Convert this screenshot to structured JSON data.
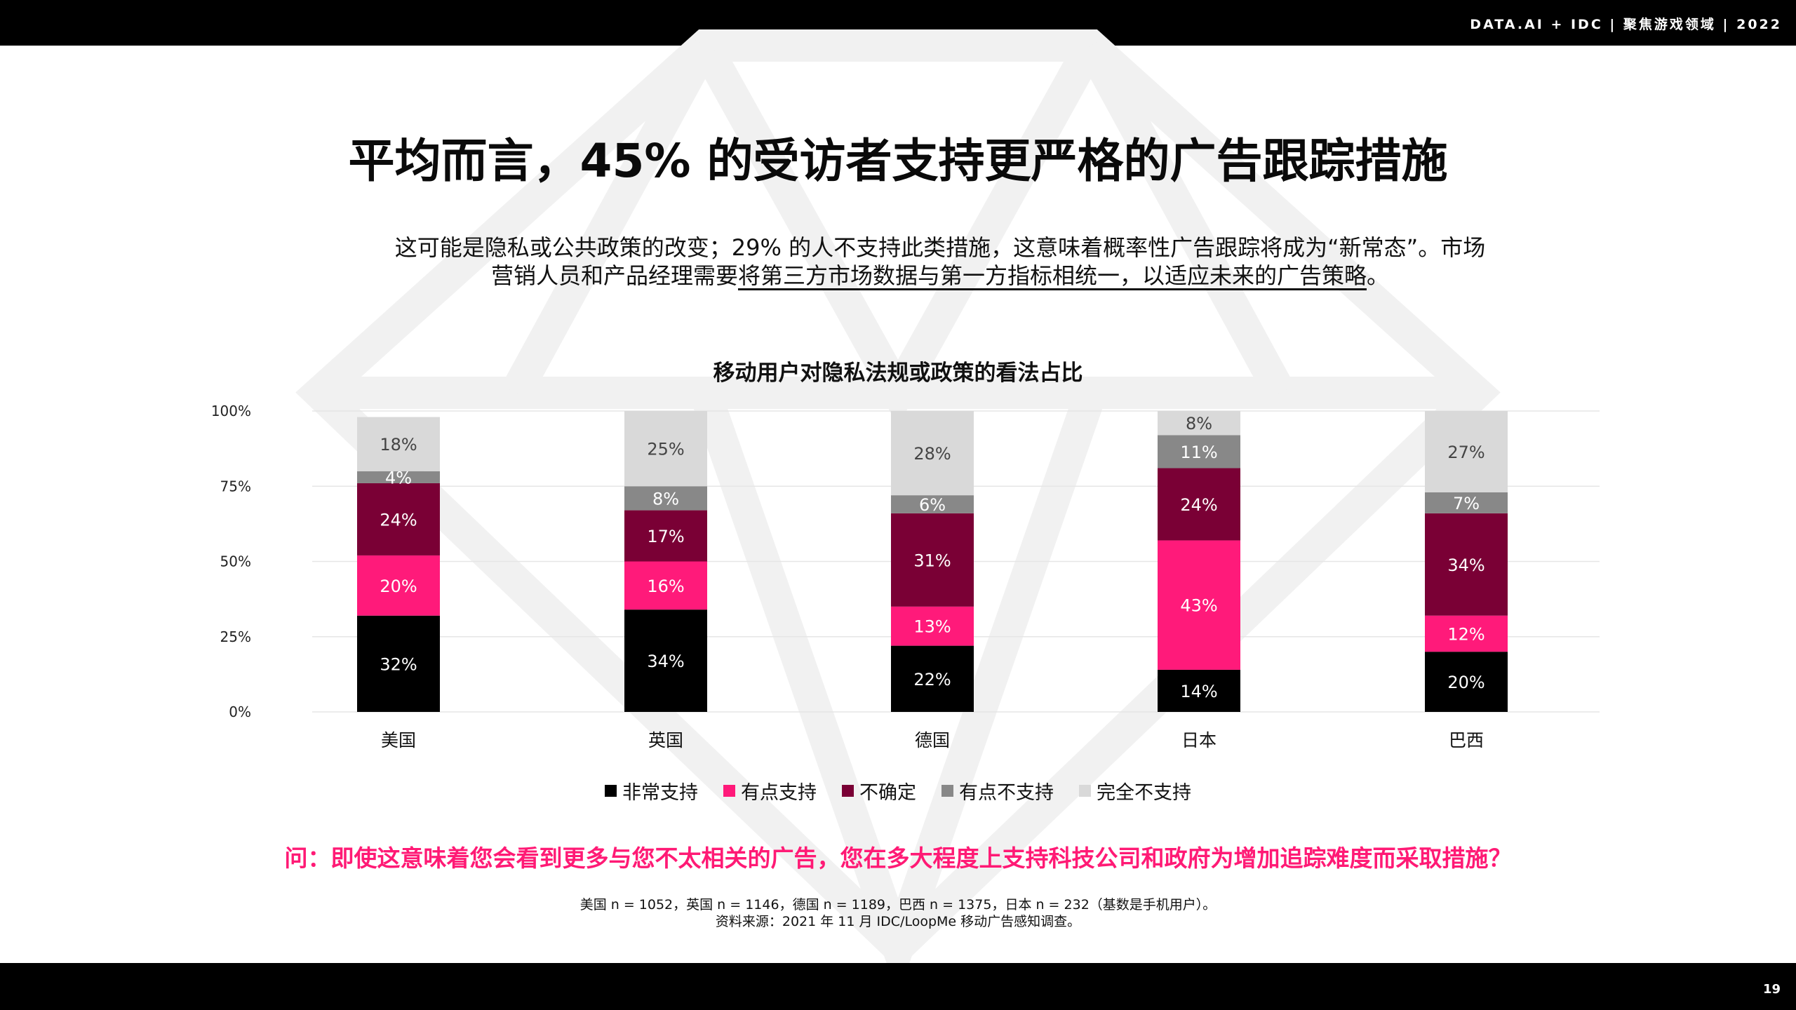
{
  "header": {
    "brand": "DATA.AI + IDC  |  聚焦游戏领域  | 2022"
  },
  "title": "平均而言，45% 的受访者支持更严格的广告跟踪措施",
  "subtitle": {
    "line1": "这可能是隐私或公共政策的改变；29% 的人不支持此类措施，这意味着概率性广告跟踪将成为“新常态”。市场",
    "line2_plain": "营销人员和产品经理需要",
    "line2_underlined": "将第三方市场数据与第一方指标相统一，以适应未来的广告策略",
    "line2_end": "。"
  },
  "chart_data": {
    "type": "bar",
    "stacked": true,
    "title": "移动用户对隐私法规或政策的看法占比",
    "categories": [
      "美国",
      "英国",
      "德国",
      "日本",
      "巴西"
    ],
    "ylim": [
      0,
      100
    ],
    "yticks": [
      "0%",
      "25%",
      "50%",
      "75%",
      "100%"
    ],
    "grid": true,
    "legend_position": "bottom",
    "series": [
      {
        "name": "非常支持",
        "color": "#000000",
        "label_color": "#ffffff",
        "values": [
          32,
          34,
          22,
          14,
          20
        ]
      },
      {
        "name": "有点支持",
        "color": "#ff1a7a",
        "label_color": "#ffffff",
        "values": [
          20,
          16,
          13,
          43,
          12
        ]
      },
      {
        "name": "不确定",
        "color": "#7a0035",
        "label_color": "#ffffff",
        "values": [
          24,
          17,
          31,
          24,
          34
        ]
      },
      {
        "name": "有点不支持",
        "color": "#888888",
        "label_color": "#ffffff",
        "values": [
          4,
          8,
          6,
          11,
          7
        ]
      },
      {
        "name": "完全不支持",
        "color": "#d9d9d9",
        "label_color": "#444444",
        "values": [
          18,
          25,
          28,
          8,
          27
        ]
      }
    ]
  },
  "question": "问：即使这意味着您会看到更多与您不太相关的广告，您在多大程度上支持科技公司和政府为增加追踪难度而采取措施？",
  "notes": {
    "sample": "美国 n = 1052，英国 n = 1146，德国 n = 1189，巴西 n = 1375，日本 n = 232（基数是手机用户）。",
    "source": "资料来源：2021 年 11 月 IDC/LoopMe 移动广告感知调查。"
  },
  "page_number": "19"
}
